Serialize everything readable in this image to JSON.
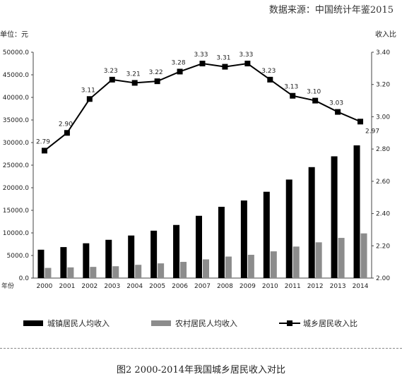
{
  "source": "数据来源：中国统计年鉴2015",
  "caption": "图2    2000-2014年我国城乡居民收入对比",
  "chart_data": {
    "type": "bar",
    "categories": [
      "2000",
      "2001",
      "2002",
      "2003",
      "2004",
      "2005",
      "2006",
      "2007",
      "2008",
      "2009",
      "2010",
      "2011",
      "2012",
      "2013",
      "2014"
    ],
    "left_unit": "单位：元",
    "right_unit": "收入比",
    "x_axis_label": "年份",
    "left_ylim": [
      0,
      50000
    ],
    "left_ticks": [
      "0.0",
      "5000.0",
      "10000.0",
      "15000.0",
      "20000.0",
      "25000.0",
      "30000.0",
      "35000.0",
      "40000.0",
      "45000.0",
      "50000.0"
    ],
    "right_ylim": [
      2.0,
      3.4
    ],
    "right_ticks": [
      "2.00",
      "2.20",
      "2.40",
      "2.60",
      "2.80",
      "3.00",
      "3.20",
      "3.40"
    ],
    "series": [
      {
        "name": "城镇居民人均收入",
        "type": "bar",
        "axis": "left",
        "color": "#000000",
        "values": [
          6280,
          6860,
          7703,
          8472,
          9422,
          10493,
          11759,
          13786,
          15781,
          17175,
          19109,
          21810,
          24565,
          26955,
          29381
        ]
      },
      {
        "name": "农村居民人均收入",
        "type": "bar",
        "axis": "left",
        "color": "#8c8c8c",
        "values": [
          2253,
          2366,
          2476,
          2622,
          2936,
          3255,
          3587,
          4140,
          4761,
          5153,
          5919,
          6977,
          7917,
          8896,
          9892
        ]
      },
      {
        "name": "城乡居民收入比",
        "type": "line",
        "axis": "right",
        "color": "#000000",
        "values": [
          2.79,
          2.9,
          3.11,
          3.23,
          3.21,
          3.22,
          3.28,
          3.33,
          3.31,
          3.33,
          3.23,
          3.13,
          3.1,
          3.03,
          2.97
        ],
        "labels": [
          "2.79",
          "2.90",
          "3.11",
          "3.23",
          "3.21",
          "3.22",
          "3.28",
          "3.33",
          "3.31",
          "3.33",
          "3.23",
          "3.13",
          "3.10",
          "3.03",
          "2.97"
        ]
      }
    ],
    "grid": false,
    "legend_position": "bottom"
  }
}
